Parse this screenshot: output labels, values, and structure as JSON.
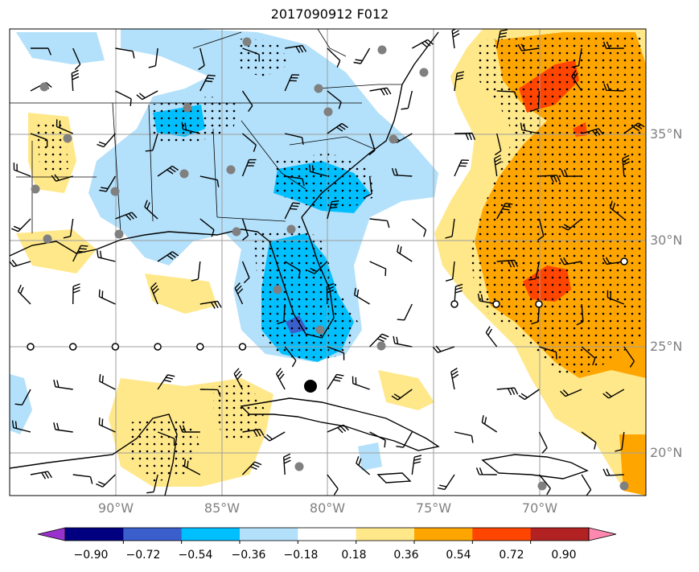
{
  "title": "2017090912 F012",
  "lat_labels": [
    "35°N",
    "30°N",
    "25°N",
    "20°N"
  ],
  "lon_labels": [
    "90°W",
    "85°W",
    "80°W",
    "75°W",
    "70°W"
  ],
  "colorbar": {
    "ticks": [
      "−0.90",
      "−0.72",
      "−0.54",
      "−0.36",
      "−0.18",
      "0.18",
      "0.36",
      "0.54",
      "0.72",
      "0.90"
    ],
    "colors": [
      "#9932cc",
      "#000080",
      "#3a5fcd",
      "#00bfff",
      "#b3e0fa",
      "#ffffff",
      "#ffe88a",
      "#ffa500",
      "#ff4500",
      "#b22222",
      "#ff88b0"
    ]
  },
  "colors": {
    "light_blue": "#b3e0fa",
    "blue": "#00bfff",
    "mid_blue": "#3a5fcd",
    "light_yellow": "#ffe88a",
    "orange": "#ffa500",
    "red_orange": "#ff4500",
    "station_gray": "#808080"
  },
  "icons": [
    "wind-barb-icon",
    "station-dot-icon",
    "storm-center-icon",
    "calm-circle-icon"
  ]
}
